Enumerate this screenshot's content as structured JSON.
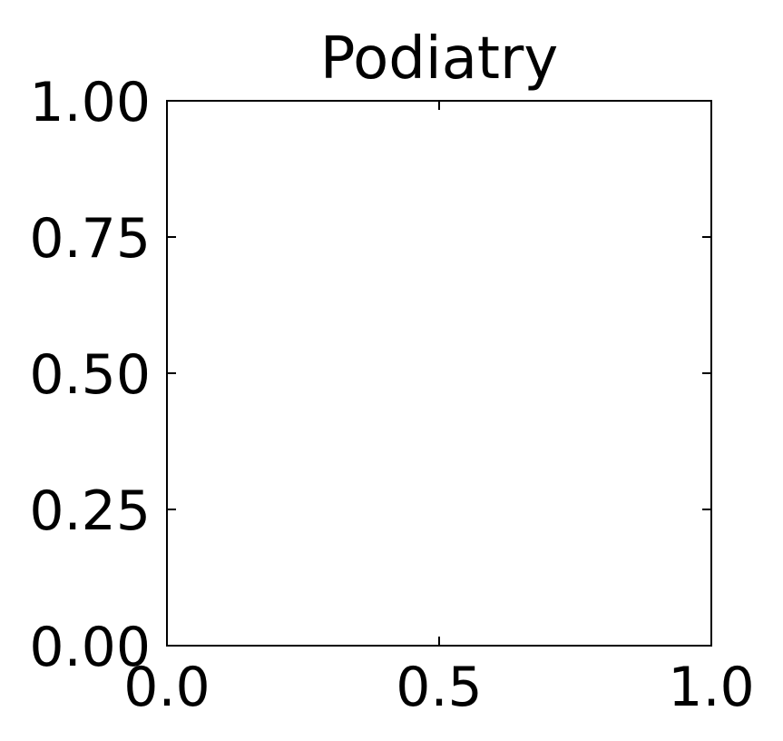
{
  "chart_data": {
    "type": "scatter",
    "title": "Podiatry",
    "xlabel": "",
    "ylabel": "",
    "xlim": [
      0.0,
      1.0
    ],
    "ylim": [
      0.0,
      1.0
    ],
    "x_ticks": [
      0.0,
      0.5,
      1.0
    ],
    "x_tick_labels": [
      "0.0",
      "0.5",
      "1.0"
    ],
    "y_ticks": [
      0.0,
      0.25,
      0.5,
      0.75,
      1.0
    ],
    "y_tick_labels": [
      "0.00",
      "0.25",
      "0.50",
      "0.75",
      "1.00"
    ],
    "series": [],
    "grid": false,
    "ticks_direction": "in",
    "ticks_on_all_sides": true,
    "colors": {
      "axis": "#000000",
      "background": "#ffffff"
    }
  }
}
